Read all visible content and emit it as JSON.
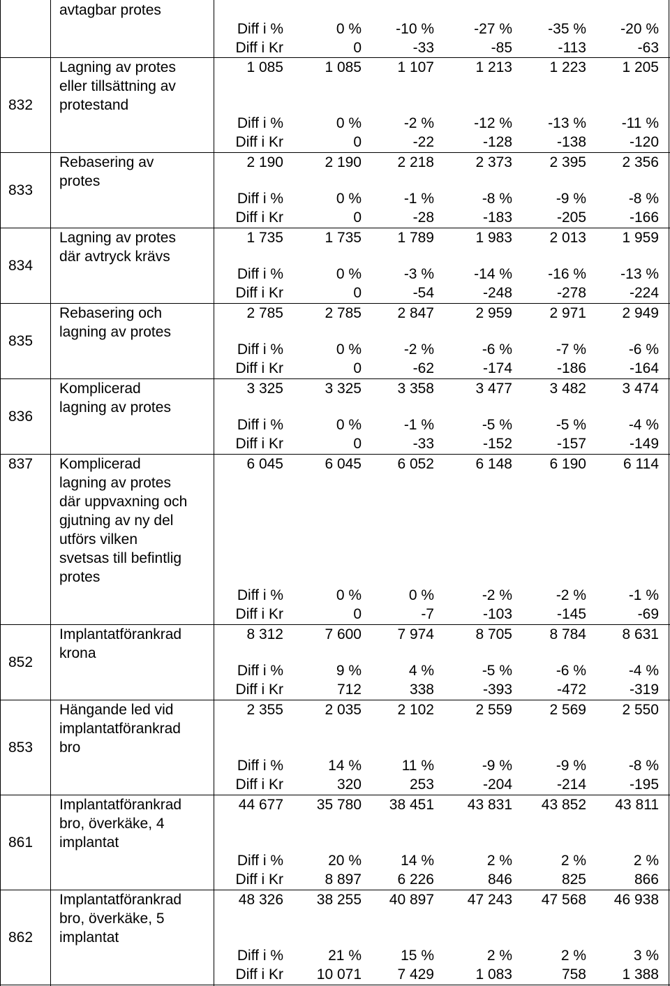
{
  "table": {
    "first_row_text": {
      "label": "avtagbar protes",
      "diff_pct": [
        "Diff i %",
        "0 %",
        "-10 %",
        "-27 %",
        "-35 %",
        "-20 %"
      ],
      "diff_kr": [
        "Diff i Kr",
        "0",
        "-33",
        "-85",
        "-113",
        "-63"
      ]
    },
    "rows": [
      {
        "code": "832",
        "lines": [
          "Lagning av protes",
          "eller tillsättning av",
          "protestand"
        ],
        "price": [
          "1 085",
          "1 085",
          "1 107",
          "1 213",
          "1 223",
          "1 205"
        ],
        "diff_pct": [
          "Diff i %",
          "0 %",
          "-2 %",
          "-12 %",
          "-13 %",
          "-11 %"
        ],
        "diff_kr": [
          "Diff i Kr",
          "0",
          "-22",
          "-128",
          "-138",
          "-120"
        ]
      },
      {
        "code": "833",
        "lines": [
          "Rebasering av",
          "protes"
        ],
        "price": [
          "2 190",
          "2 190",
          "2 218",
          "2 373",
          "2 395",
          "2 356"
        ],
        "diff_pct": [
          "Diff i %",
          "0 %",
          "-1 %",
          "-8 %",
          "-9 %",
          "-8 %"
        ],
        "diff_kr": [
          "Diff i Kr",
          "0",
          "-28",
          "-183",
          "-205",
          "-166"
        ]
      },
      {
        "code": "834",
        "lines": [
          "Lagning av protes",
          "där avtryck krävs"
        ],
        "price": [
          "1 735",
          "1 735",
          "1 789",
          "1 983",
          "2 013",
          "1 959"
        ],
        "diff_pct": [
          "Diff i %",
          "0 %",
          "-3 %",
          "-14 %",
          "-16 %",
          "-13 %"
        ],
        "diff_kr": [
          "Diff i Kr",
          "0",
          "-54",
          "-248",
          "-278",
          "-224"
        ]
      },
      {
        "code": "835",
        "lines": [
          "Rebasering och",
          "lagning av protes"
        ],
        "price": [
          "2 785",
          "2 785",
          "2 847",
          "2 959",
          "2 971",
          "2 949"
        ],
        "diff_pct": [
          "Diff i %",
          "0 %",
          "-2 %",
          "-6 %",
          "-7 %",
          "-6 %"
        ],
        "diff_kr": [
          "Diff i Kr",
          "0",
          "-62",
          "-174",
          "-186",
          "-164"
        ]
      },
      {
        "code": "836",
        "lines": [
          "Komplicerad",
          "lagning av protes"
        ],
        "price": [
          "3 325",
          "3 325",
          "3 358",
          "3 477",
          "3 482",
          "3 474"
        ],
        "diff_pct": [
          "Diff i %",
          "0 %",
          "-1 %",
          "-5 %",
          "-5 %",
          "-4 %"
        ],
        "diff_kr": [
          "Diff i Kr",
          "0",
          "-33",
          "-152",
          "-157",
          "-149"
        ]
      },
      {
        "code": "837",
        "lines": [
          "Komplicerad",
          "lagning av protes",
          "där uppvaxning och",
          "gjutning av ny del",
          "utförs vilken",
          "svetsas till befintlig",
          "protes"
        ],
        "price": [
          "6 045",
          "6 045",
          "6 052",
          "6 148",
          "6 190",
          "6 114"
        ],
        "diff_pct": [
          "Diff i %",
          "0 %",
          "0 %",
          "-2 %",
          "-2 %",
          "-1 %"
        ],
        "diff_kr": [
          "Diff i Kr",
          "0",
          "-7",
          "-103",
          "-145",
          "-69"
        ]
      },
      {
        "code": "852",
        "lines": [
          "Implantatförankrad",
          "krona"
        ],
        "price": [
          "8 312",
          "7 600",
          "7 974",
          "8 705",
          "8 784",
          "8 631"
        ],
        "diff_pct": [
          "Diff i %",
          "9 %",
          "4 %",
          "-5 %",
          "-6 %",
          "-4 %"
        ],
        "diff_kr": [
          "Diff i Kr",
          "712",
          "338",
          "-393",
          "-472",
          "-319"
        ]
      },
      {
        "code": "853",
        "lines": [
          "Hängande led vid",
          "implantatförankrad",
          "bro"
        ],
        "price": [
          "2 355",
          "2 035",
          "2 102",
          "2 559",
          "2 569",
          "2 550"
        ],
        "diff_pct": [
          "Diff i %",
          "14 %",
          "11 %",
          "-9 %",
          "-9 %",
          "-8 %"
        ],
        "diff_kr": [
          "Diff i Kr",
          "320",
          "253",
          "-204",
          "-214",
          "-195"
        ]
      },
      {
        "code": "861",
        "lines": [
          "Implantatförankrad",
          "bro, överkäke, 4",
          "implantat"
        ],
        "price": [
          "44 677",
          "35 780",
          "38 451",
          "43 831",
          "43 852",
          "43 811"
        ],
        "diff_pct": [
          "Diff i %",
          "20 %",
          "14 %",
          "2 %",
          "2 %",
          "2 %"
        ],
        "diff_kr": [
          "Diff i Kr",
          "8 897",
          "6 226",
          "846",
          "825",
          "866"
        ]
      },
      {
        "code": "862",
        "lines": [
          "Implantatförankrad",
          "bro, överkäke, 5",
          "implantat"
        ],
        "price": [
          "48 326",
          "38 255",
          "40 897",
          "47 243",
          "47 568",
          "46 938"
        ],
        "diff_pct": [
          "Diff i %",
          "21 %",
          "15 %",
          "2 %",
          "2 %",
          "3 %"
        ],
        "diff_kr": [
          "Diff i Kr",
          "10 071",
          "7 429",
          "1 083",
          "758",
          "1 388"
        ]
      }
    ]
  }
}
